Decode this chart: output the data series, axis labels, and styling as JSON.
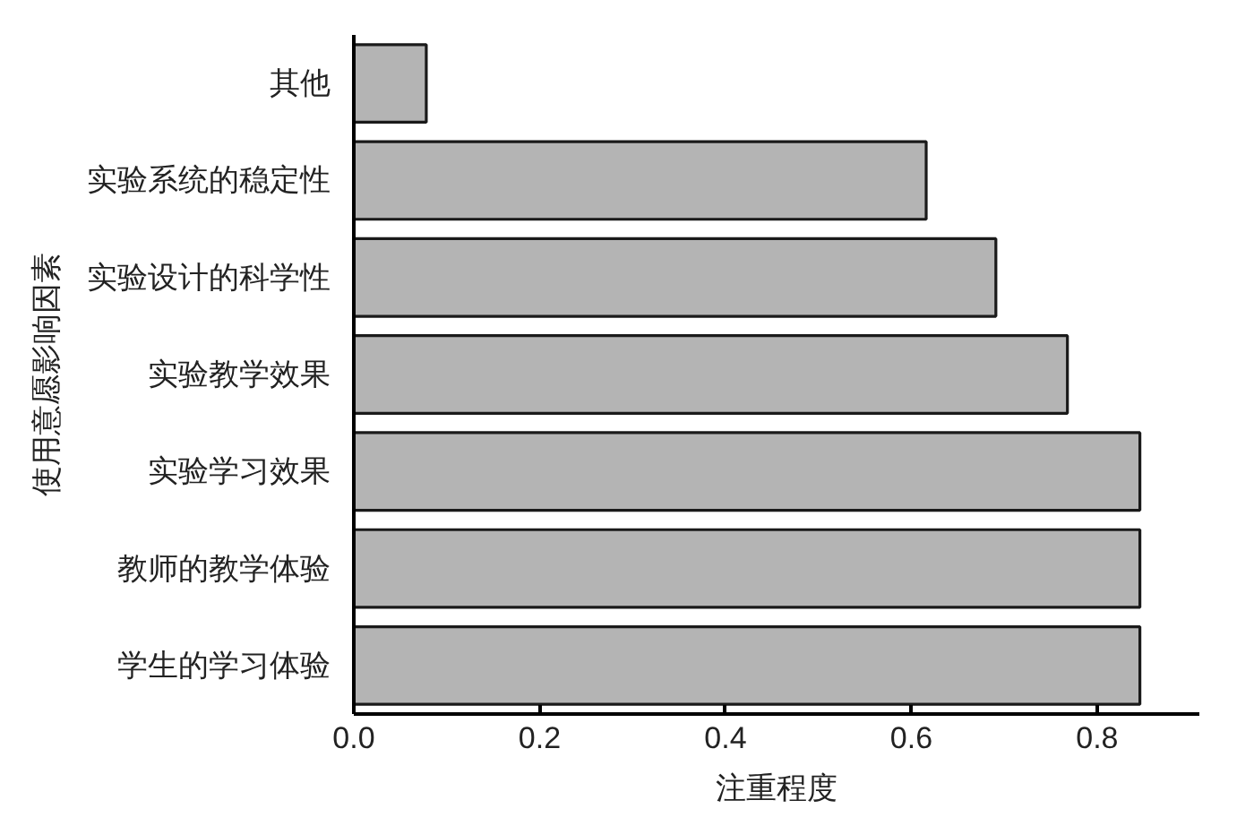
{
  "chart_data": {
    "type": "bar",
    "orientation": "horizontal",
    "categories": [
      "其他",
      "实验系统的稳定性",
      "实验设计的科学性",
      "实验教学效果",
      "实验学习效果",
      "教师的教学体验",
      "学生的学习体验"
    ],
    "values": [
      0.078,
      0.616,
      0.691,
      0.768,
      0.846,
      0.846,
      0.846
    ],
    "color": "#b4b4b4",
    "xlabel": "注重程度",
    "ylabel": "使用意愿影响因素",
    "xlim": [
      0,
      0.91
    ],
    "xticks": [
      {
        "value": 0,
        "label": "0.0"
      },
      0.2,
      0.4,
      0.6,
      0.8
    ]
  }
}
